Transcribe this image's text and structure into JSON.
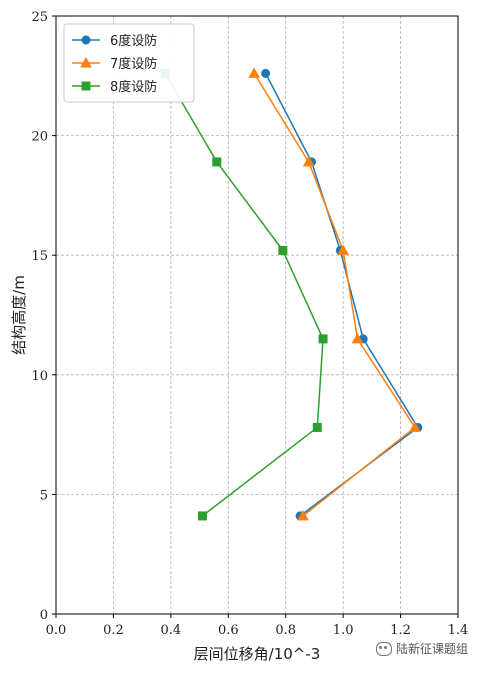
{
  "chart_data": {
    "type": "line",
    "xlabel": "层间位移角/10^-3",
    "ylabel": "结构高度/m",
    "xlim": [
      0,
      1.4
    ],
    "ylim": [
      0,
      25
    ],
    "xticks": [
      "0.0",
      "0.2",
      "0.4",
      "0.6",
      "0.8",
      "1.0",
      "1.2",
      "1.4"
    ],
    "yticks": [
      "0",
      "5",
      "10",
      "15",
      "20",
      "25"
    ],
    "grid": true,
    "legend_position": "top-left",
    "series": [
      {
        "name": "6度设防",
        "color": "#1f77b4",
        "marker": "circle",
        "points": [
          {
            "x": 0.73,
            "y": 22.6
          },
          {
            "x": 0.89,
            "y": 18.9
          },
          {
            "x": 0.99,
            "y": 15.2
          },
          {
            "x": 1.07,
            "y": 11.5
          },
          {
            "x": 1.26,
            "y": 7.8
          },
          {
            "x": 0.85,
            "y": 4.1
          }
        ]
      },
      {
        "name": "7度设防",
        "color": "#ff7f0e",
        "marker": "triangle",
        "points": [
          {
            "x": 0.69,
            "y": 22.6
          },
          {
            "x": 0.88,
            "y": 18.9
          },
          {
            "x": 1.0,
            "y": 15.2
          },
          {
            "x": 1.05,
            "y": 11.5
          },
          {
            "x": 1.25,
            "y": 7.8
          },
          {
            "x": 0.86,
            "y": 4.1
          }
        ]
      },
      {
        "name": "8度设防",
        "color": "#2ca02c",
        "marker": "square",
        "points": [
          {
            "x": 0.38,
            "y": 22.6
          },
          {
            "x": 0.56,
            "y": 18.9
          },
          {
            "x": 0.79,
            "y": 15.2
          },
          {
            "x": 0.93,
            "y": 11.5
          },
          {
            "x": 0.91,
            "y": 7.8
          },
          {
            "x": 0.51,
            "y": 4.1
          }
        ]
      }
    ]
  },
  "watermark": {
    "text": "陆新征课题组",
    "icon": "wechat-icon"
  }
}
